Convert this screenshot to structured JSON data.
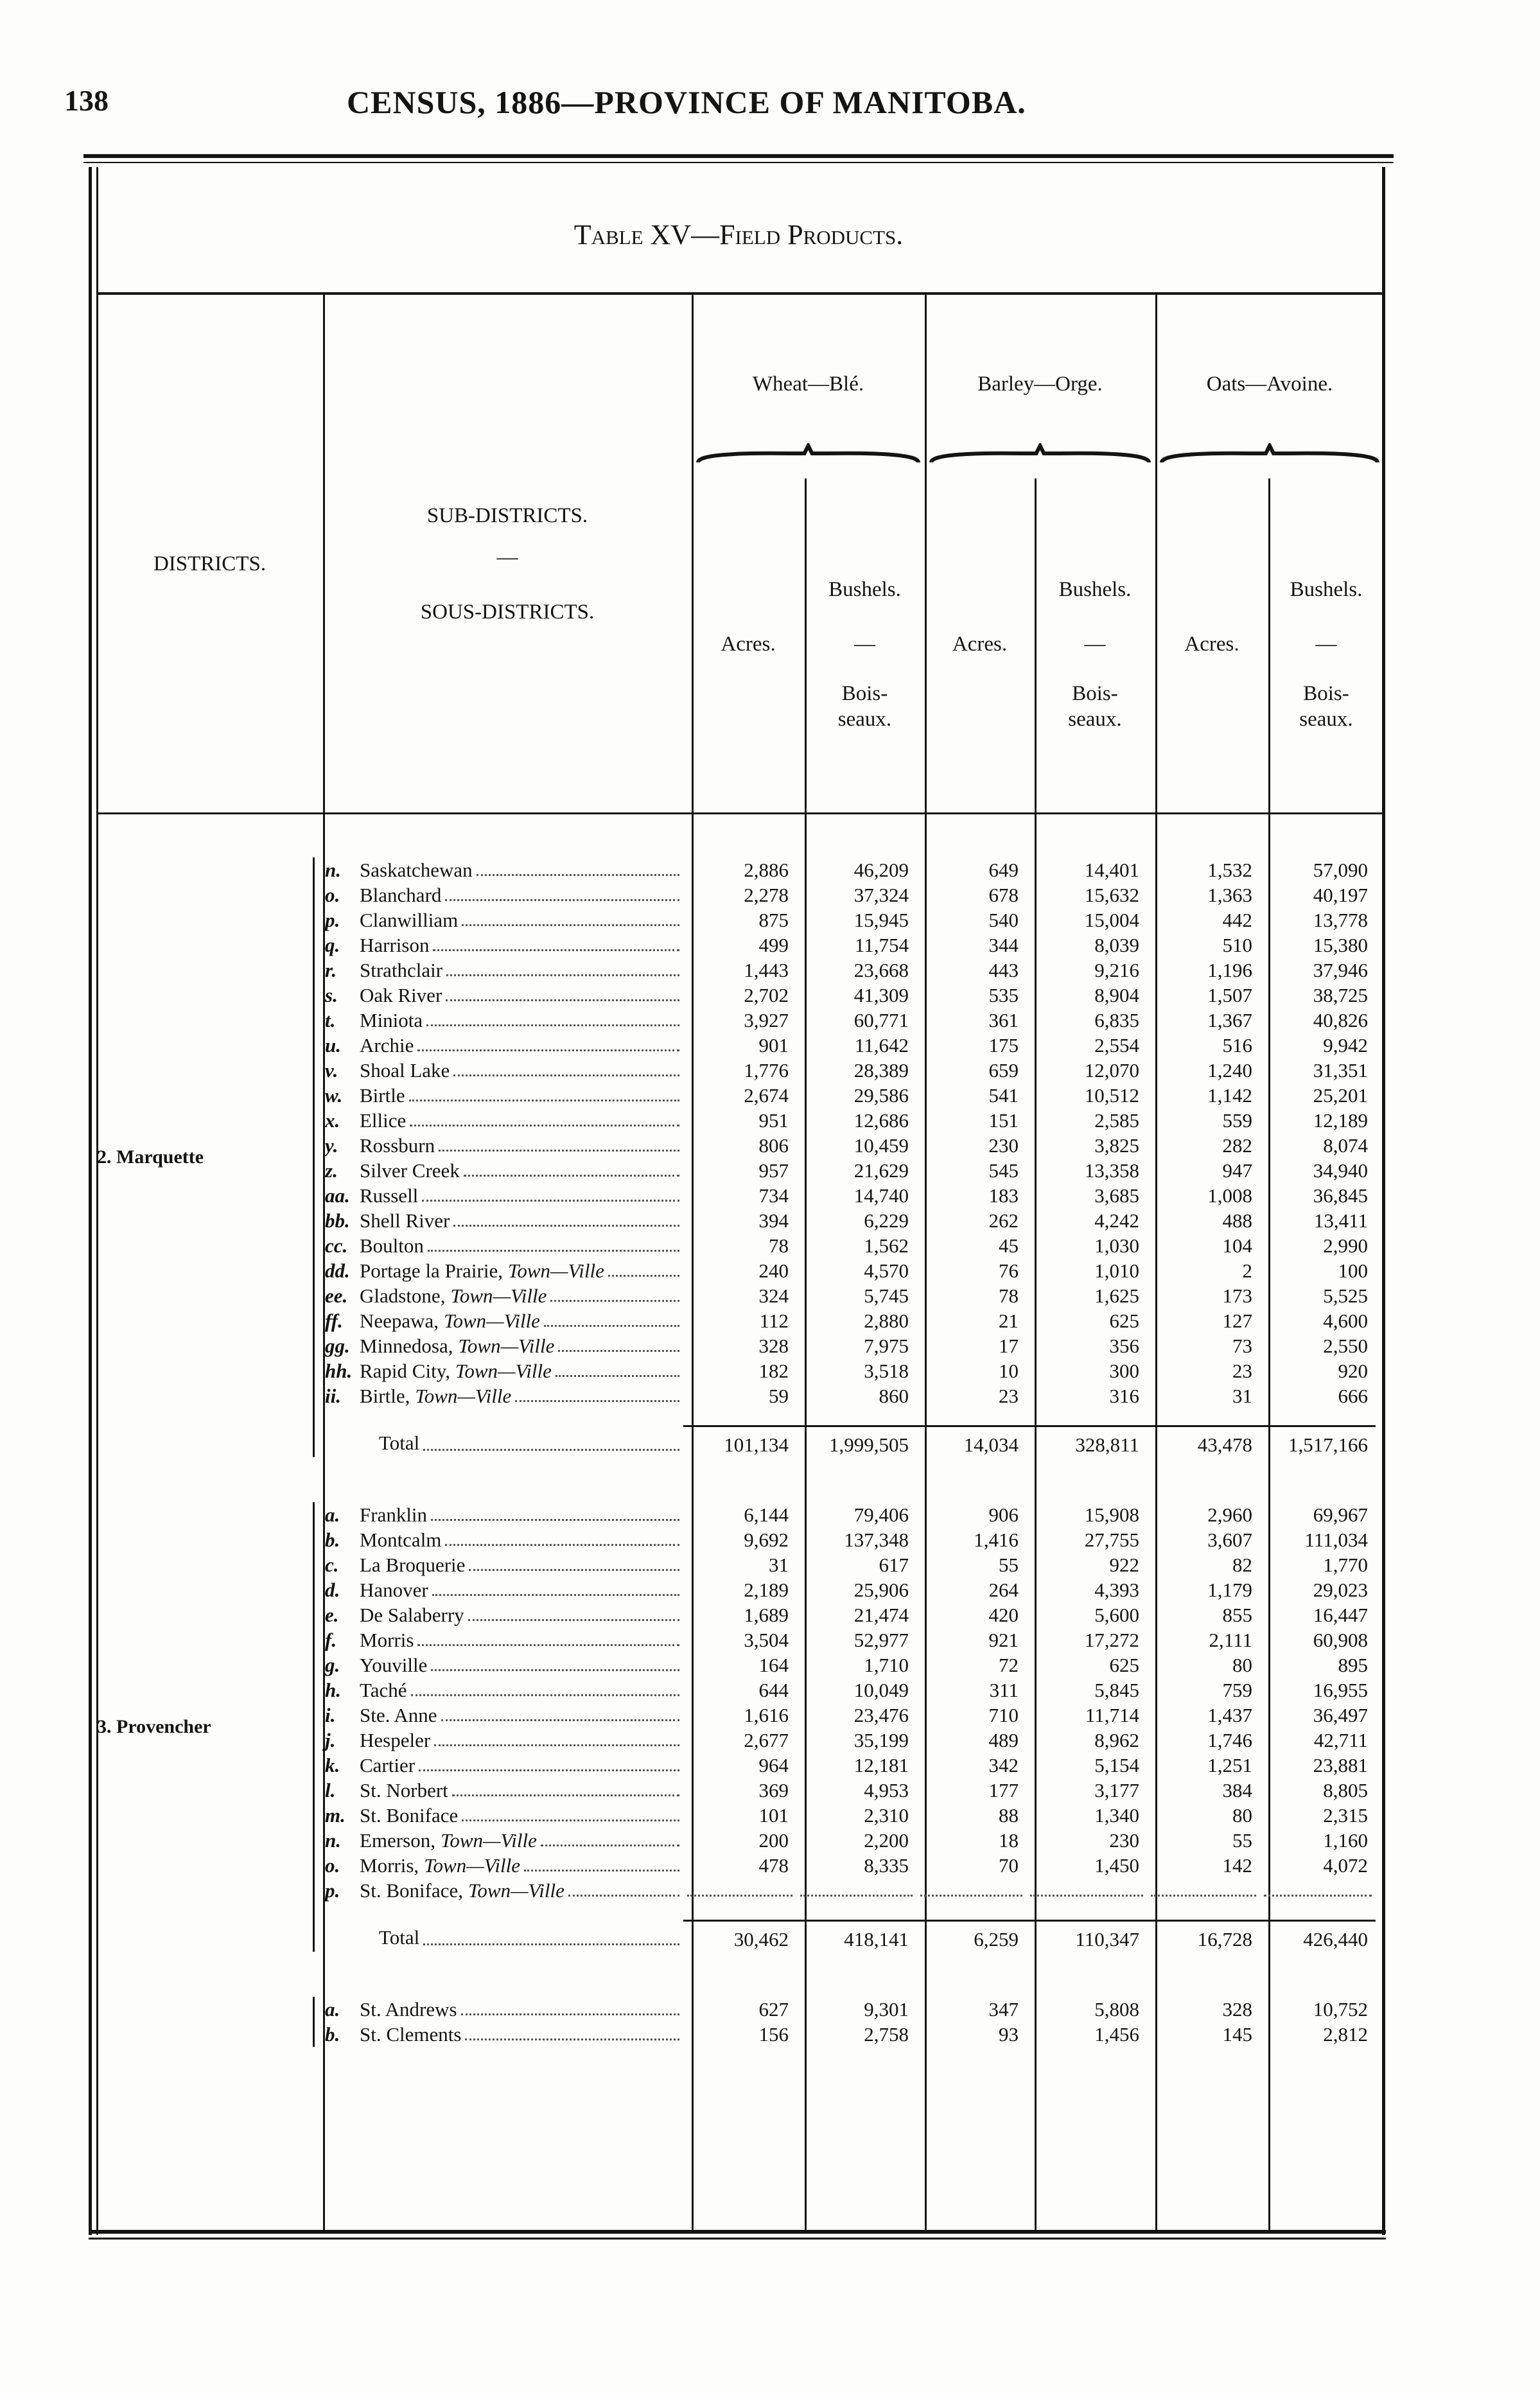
{
  "header": {
    "page_number": "138",
    "title": "CENSUS, 1886—PROVINCE OF MANITOBA."
  },
  "table": {
    "title": "Table XV—Field Products.",
    "columns": {
      "districts": "DISTRICTS.",
      "sub_districts": "SUB-DISTRICTS.",
      "dash": "—",
      "sous_districts": "SOUS-DISTRICTS.",
      "crops": [
        "Wheat—Blé.",
        "Barley—Orge.",
        "Oats—Avoine."
      ],
      "acres": "Acres.",
      "bushels": "Bushels.",
      "boisseaux": "Bois-seaux."
    },
    "sections": [
      {
        "district": "2. Marquette",
        "rows": [
          {
            "letter": "n.",
            "name": "Saskatchewan",
            "values": [
              "2,886",
              "46,209",
              "649",
              "14,401",
              "1,532",
              "57,090"
            ]
          },
          {
            "letter": "o.",
            "name": "Blanchard",
            "values": [
              "2,278",
              "37,324",
              "678",
              "15,632",
              "1,363",
              "40,197"
            ]
          },
          {
            "letter": "p.",
            "name": "Clanwilliam",
            "values": [
              "875",
              "15,945",
              "540",
              "15,004",
              "442",
              "13,778"
            ]
          },
          {
            "letter": "q.",
            "name": "Harrison",
            "values": [
              "499",
              "11,754",
              "344",
              "8,039",
              "510",
              "15,380"
            ]
          },
          {
            "letter": "r.",
            "name": "Strathclair",
            "values": [
              "1,443",
              "23,668",
              "443",
              "9,216",
              "1,196",
              "37,946"
            ]
          },
          {
            "letter": "s.",
            "name": "Oak River",
            "values": [
              "2,702",
              "41,309",
              "535",
              "8,904",
              "1,507",
              "38,725"
            ]
          },
          {
            "letter": "t.",
            "name": "Miniota",
            "values": [
              "3,927",
              "60,771",
              "361",
              "6,835",
              "1,367",
              "40,826"
            ]
          },
          {
            "letter": "u.",
            "name": "Archie",
            "values": [
              "901",
              "11,642",
              "175",
              "2,554",
              "516",
              "9,942"
            ]
          },
          {
            "letter": "v.",
            "name": "Shoal Lake",
            "values": [
              "1,776",
              "28,389",
              "659",
              "12,070",
              "1,240",
              "31,351"
            ]
          },
          {
            "letter": "w.",
            "name": "Birtle",
            "values": [
              "2,674",
              "29,586",
              "541",
              "10,512",
              "1,142",
              "25,201"
            ]
          },
          {
            "letter": "x.",
            "name": "Ellice",
            "values": [
              "951",
              "12,686",
              "151",
              "2,585",
              "559",
              "12,189"
            ]
          },
          {
            "letter": "y.",
            "name": "Rossburn",
            "values": [
              "806",
              "10,459",
              "230",
              "3,825",
              "282",
              "8,074"
            ]
          },
          {
            "letter": "z.",
            "name": "Silver Creek",
            "values": [
              "957",
              "21,629",
              "545",
              "13,358",
              "947",
              "34,940"
            ]
          },
          {
            "letter": "aa.",
            "name": "Russell",
            "values": [
              "734",
              "14,740",
              "183",
              "3,685",
              "1,008",
              "36,845"
            ]
          },
          {
            "letter": "bb.",
            "name": "Shell River",
            "values": [
              "394",
              "6,229",
              "262",
              "4,242",
              "488",
              "13,411"
            ]
          },
          {
            "letter": "cc.",
            "name": "Boulton",
            "values": [
              "78",
              "1,562",
              "45",
              "1,030",
              "104",
              "2,990"
            ]
          },
          {
            "letter": "dd.",
            "name": "Portage la Prairie,",
            "suffix": "Town—Ville",
            "values": [
              "240",
              "4,570",
              "76",
              "1,010",
              "2",
              "100"
            ]
          },
          {
            "letter": "ee.",
            "name": "Gladstone,",
            "suffix": "Town—Ville",
            "values": [
              "324",
              "5,745",
              "78",
              "1,625",
              "173",
              "5,525"
            ]
          },
          {
            "letter": "ff.",
            "name": "Neepawa,",
            "suffix": "Town—Ville",
            "values": [
              "112",
              "2,880",
              "21",
              "625",
              "127",
              "4,600"
            ]
          },
          {
            "letter": "gg.",
            "name": "Minnedosa,",
            "suffix": "Town—Ville",
            "values": [
              "328",
              "7,975",
              "17",
              "356",
              "73",
              "2,550"
            ]
          },
          {
            "letter": "hh.",
            "name": "Rapid City,",
            "suffix": "Town—Ville",
            "values": [
              "182",
              "3,518",
              "10",
              "300",
              "23",
              "920"
            ]
          },
          {
            "letter": "ii.",
            "name": "Birtle,",
            "suffix": "Town—Ville",
            "values": [
              "59",
              "860",
              "23",
              "316",
              "31",
              "666"
            ]
          }
        ],
        "total": {
          "label": "Total",
          "values": [
            "101,134",
            "1,999,505",
            "14,034",
            "328,811",
            "43,478",
            "1,517,166"
          ]
        }
      },
      {
        "district": "3. Provencher",
        "rows": [
          {
            "letter": "a.",
            "name": "Franklin",
            "values": [
              "6,144",
              "79,406",
              "906",
              "15,908",
              "2,960",
              "69,967"
            ]
          },
          {
            "letter": "b.",
            "name": "Montcalm",
            "values": [
              "9,692",
              "137,348",
              "1,416",
              "27,755",
              "3,607",
              "111,034"
            ]
          },
          {
            "letter": "c.",
            "name": "La Broquerie",
            "values": [
              "31",
              "617",
              "55",
              "922",
              "82",
              "1,770"
            ]
          },
          {
            "letter": "d.",
            "name": "Hanover",
            "values": [
              "2,189",
              "25,906",
              "264",
              "4,393",
              "1,179",
              "29,023"
            ]
          },
          {
            "letter": "e.",
            "name": "De Salaberry",
            "values": [
              "1,689",
              "21,474",
              "420",
              "5,600",
              "855",
              "16,447"
            ]
          },
          {
            "letter": "f.",
            "name": "Morris",
            "values": [
              "3,504",
              "52,977",
              "921",
              "17,272",
              "2,111",
              "60,908"
            ]
          },
          {
            "letter": "g.",
            "name": "Youville",
            "values": [
              "164",
              "1,710",
              "72",
              "625",
              "80",
              "895"
            ]
          },
          {
            "letter": "h.",
            "name": "Taché",
            "values": [
              "644",
              "10,049",
              "311",
              "5,845",
              "759",
              "16,955"
            ]
          },
          {
            "letter": "i.",
            "name": "Ste. Anne",
            "values": [
              "1,616",
              "23,476",
              "710",
              "11,714",
              "1,437",
              "36,497"
            ]
          },
          {
            "letter": "j.",
            "name": "Hespeler",
            "values": [
              "2,677",
              "35,199",
              "489",
              "8,962",
              "1,746",
              "42,711"
            ]
          },
          {
            "letter": "k.",
            "name": "Cartier",
            "values": [
              "964",
              "12,181",
              "342",
              "5,154",
              "1,251",
              "23,881"
            ]
          },
          {
            "letter": "l.",
            "name": "St. Norbert",
            "values": [
              "369",
              "4,953",
              "177",
              "3,177",
              "384",
              "8,805"
            ]
          },
          {
            "letter": "m.",
            "name": "St. Boniface",
            "values": [
              "101",
              "2,310",
              "88",
              "1,340",
              "80",
              "2,315"
            ]
          },
          {
            "letter": "n.",
            "name": "Emerson,",
            "suffix": "Town—Ville",
            "values": [
              "200",
              "2,200",
              "18",
              "230",
              "55",
              "1,160"
            ]
          },
          {
            "letter": "o.",
            "name": "Morris,",
            "suffix": "Town—Ville",
            "values": [
              "478",
              "8,335",
              "70",
              "1,450",
              "142",
              "4,072"
            ]
          },
          {
            "letter": "p.",
            "name": "St. Boniface,",
            "suffix": "Town—Ville",
            "values": []
          }
        ],
        "total": {
          "label": "Total",
          "values": [
            "30,462",
            "418,141",
            "6,259",
            "110,347",
            "16,728",
            "426,440"
          ]
        }
      },
      {
        "rows": [
          {
            "letter": "a.",
            "name": "St. Andrews",
            "values": [
              "627",
              "9,301",
              "347",
              "5,808",
              "328",
              "10,752"
            ]
          },
          {
            "letter": "b.",
            "name": "St. Clements",
            "values": [
              "156",
              "2,758",
              "93",
              "1,456",
              "145",
              "2,812"
            ]
          }
        ]
      }
    ]
  }
}
